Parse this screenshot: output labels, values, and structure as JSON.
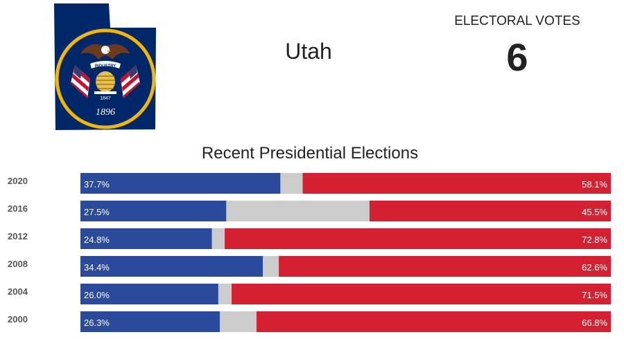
{
  "header": {
    "state_name": "Utah",
    "electoral_votes_label": "ELECTORAL VOTES",
    "electoral_votes_value": "6",
    "flag_seal_text": {
      "motto": "INDUSTRY",
      "founded": "1847",
      "statehood": "1896"
    },
    "flag_icon": "utah-state-flag-map"
  },
  "colors": {
    "democrat": "#2a4a9c",
    "other": "#cccccc",
    "republican": "#d42030",
    "flag_blue": "#002868",
    "seal_gold": "#f2b705"
  },
  "chart_data": {
    "type": "bar",
    "orientation": "horizontal-stacked",
    "title": "Recent Presidential Elections",
    "xlim": [
      0,
      100
    ],
    "categories": [
      "2020",
      "2016",
      "2012",
      "2008",
      "2004",
      "2000"
    ],
    "series": [
      {
        "values": [
          37.7,
          27.5,
          24.8,
          34.4,
          26.0,
          26.3
        ],
        "labels": [
          "37.7%",
          "27.5%",
          "24.8%",
          "34.4%",
          "26.0%",
          "26.3%"
        ]
      },
      {
        "values": [
          4.2,
          27.0,
          2.4,
          3.0,
          2.5,
          6.9
        ]
      },
      {
        "values": [
          58.1,
          45.5,
          72.8,
          62.6,
          71.5,
          66.8
        ],
        "labels": [
          "58.1%",
          "45.5%",
          "72.8%",
          "62.6%",
          "71.5%",
          "66.8%"
        ]
      }
    ],
    "grid": false,
    "legend": "none"
  }
}
